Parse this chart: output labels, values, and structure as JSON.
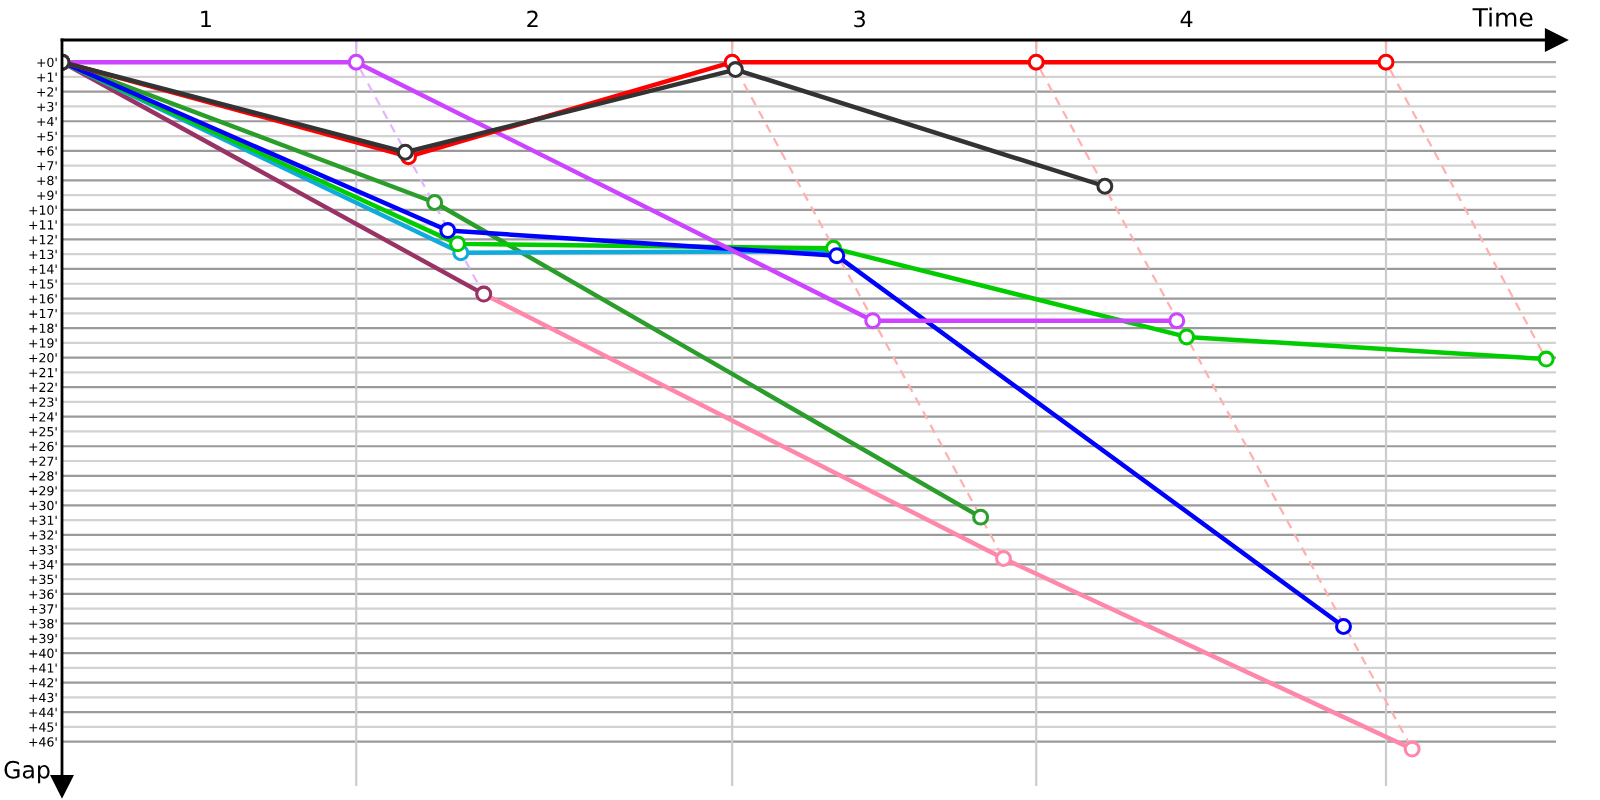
{
  "chart_data": {
    "type": "line",
    "xlabel": "Time",
    "ylabel": "Gap",
    "xlim": [
      0.56,
      5.13
    ],
    "ylim": [
      49,
      -1.5
    ],
    "xticks": [
      1,
      2,
      3,
      4
    ],
    "yticks": [
      {
        "value": 0,
        "label": "+0'"
      },
      {
        "value": 1,
        "label": "+1'"
      },
      {
        "value": 2,
        "label": "+2'"
      },
      {
        "value": 3,
        "label": "+3'"
      },
      {
        "value": 4,
        "label": "+4'"
      },
      {
        "value": 5,
        "label": "+5'"
      },
      {
        "value": 6,
        "label": "+6'"
      },
      {
        "value": 7,
        "label": "+7'"
      },
      {
        "value": 8,
        "label": "+8'"
      },
      {
        "value": 9,
        "label": "+9'"
      },
      {
        "value": 10,
        "label": "+10'"
      },
      {
        "value": 11,
        "label": "+11'"
      },
      {
        "value": 12,
        "label": "+12'"
      },
      {
        "value": 13,
        "label": "+13'"
      },
      {
        "value": 14,
        "label": "+14'"
      },
      {
        "value": 15,
        "label": "+15'"
      },
      {
        "value": 16,
        "label": "+16'"
      },
      {
        "value": 17,
        "label": "+17'"
      },
      {
        "value": 18,
        "label": "+18'"
      },
      {
        "value": 19,
        "label": "+19'"
      },
      {
        "value": 20,
        "label": "+20'"
      },
      {
        "value": 21,
        "label": "+21'"
      },
      {
        "value": 22,
        "label": "+22'"
      },
      {
        "value": 23,
        "label": "+23'"
      },
      {
        "value": 24,
        "label": "+24'"
      },
      {
        "value": 25,
        "label": "+25'"
      },
      {
        "value": 26,
        "label": "+26'"
      },
      {
        "value": 27,
        "label": "+27'"
      },
      {
        "value": 28,
        "label": "+28'"
      },
      {
        "value": 29,
        "label": "+29'"
      },
      {
        "value": 30,
        "label": "+30'"
      },
      {
        "value": 31,
        "label": "+31'"
      },
      {
        "value": 32,
        "label": "+32'"
      },
      {
        "value": 33,
        "label": "+33'"
      },
      {
        "value": 34,
        "label": "+34'"
      },
      {
        "value": 35,
        "label": "+35'"
      },
      {
        "value": 36,
        "label": "+36'"
      },
      {
        "value": 37,
        "label": "+37'"
      },
      {
        "value": 38,
        "label": "+38'"
      },
      {
        "value": 39,
        "label": "+39'"
      },
      {
        "value": 40,
        "label": "+40'"
      },
      {
        "value": 41,
        "label": "+41'"
      },
      {
        "value": 42,
        "label": "+42'"
      },
      {
        "value": 43,
        "label": "+43'"
      },
      {
        "value": 44,
        "label": "+44'"
      },
      {
        "value": 45,
        "label": "+45'"
      },
      {
        "value": 46,
        "label": "+46'"
      }
    ],
    "grid": "y",
    "marker": "circle",
    "line_style": "solid",
    "ref_lines": [
      {
        "axis": "x",
        "value": 1.46,
        "color": "#cccccc"
      },
      {
        "axis": "x",
        "value": 2.61,
        "color": "#cccccc"
      },
      {
        "axis": "x",
        "value": 3.54,
        "color": "#cccccc"
      },
      {
        "axis": "x",
        "value": 4.61,
        "color": "#cccccc"
      }
    ],
    "series": [
      {
        "color": "#e4b4ff",
        "marker": "none",
        "line_style": "dashed",
        "x": [
          1.46,
          1.46,
          1.85
        ],
        "values": [
          -1.5,
          0,
          15.7
        ]
      },
      {
        "color": "#ffb0b0",
        "marker": "none",
        "line_style": "dashed",
        "x": [
          2.61,
          2.61,
          3.44
        ],
        "values": [
          -1.5,
          0,
          33.6
        ]
      },
      {
        "color": "#ffb0b0",
        "marker": "none",
        "line_style": "dashed",
        "x": [
          3.54,
          3.54,
          4.69
        ],
        "values": [
          -1.5,
          0,
          46.5
        ]
      },
      {
        "color": "#ffb0b0",
        "marker": "none",
        "line_style": "dashed",
        "x": [
          4.61,
          4.61,
          5.1
        ],
        "values": [
          -1.5,
          0,
          20.1
        ]
      },
      {
        "color": "#ff88aa",
        "x": [
          1.85,
          3.44,
          4.69
        ],
        "values": [
          15.7,
          33.6,
          46.5
        ]
      },
      {
        "color": "#993366",
        "x": [
          0.56,
          1.85
        ],
        "values": [
          0,
          15.7
        ]
      },
      {
        "color": "#2a9d2a",
        "x": [
          0.56,
          1.7,
          3.37
        ],
        "values": [
          0,
          9.5,
          30.8
        ]
      },
      {
        "color": "#11aadd",
        "x": [
          0.56,
          1.78,
          2.92
        ],
        "values": [
          0,
          12.9,
          12.8
        ]
      },
      {
        "color": "#00cc00",
        "x": [
          0.56,
          1.77,
          2.92,
          4.0,
          5.1
        ],
        "values": [
          0,
          12.3,
          12.6,
          18.6,
          20.1
        ]
      },
      {
        "color": "#0000ff",
        "x": [
          0.56,
          1.74,
          2.93,
          4.48
        ],
        "values": [
          0,
          11.4,
          13.1,
          38.2
        ]
      },
      {
        "color": "#cc44ff",
        "x": [
          0.56,
          1.46,
          3.04,
          3.97
        ],
        "values": [
          0,
          0,
          17.5,
          17.5
        ]
      },
      {
        "color": "#ff0000",
        "x": [
          0.56,
          1.62,
          2.61,
          3.54,
          4.61
        ],
        "values": [
          0,
          6.4,
          0,
          0,
          0
        ]
      },
      {
        "color": "#333333",
        "x": [
          0.56,
          1.61,
          2.62,
          3.75
        ],
        "values": [
          0,
          6.1,
          0.5,
          8.4
        ]
      }
    ]
  }
}
